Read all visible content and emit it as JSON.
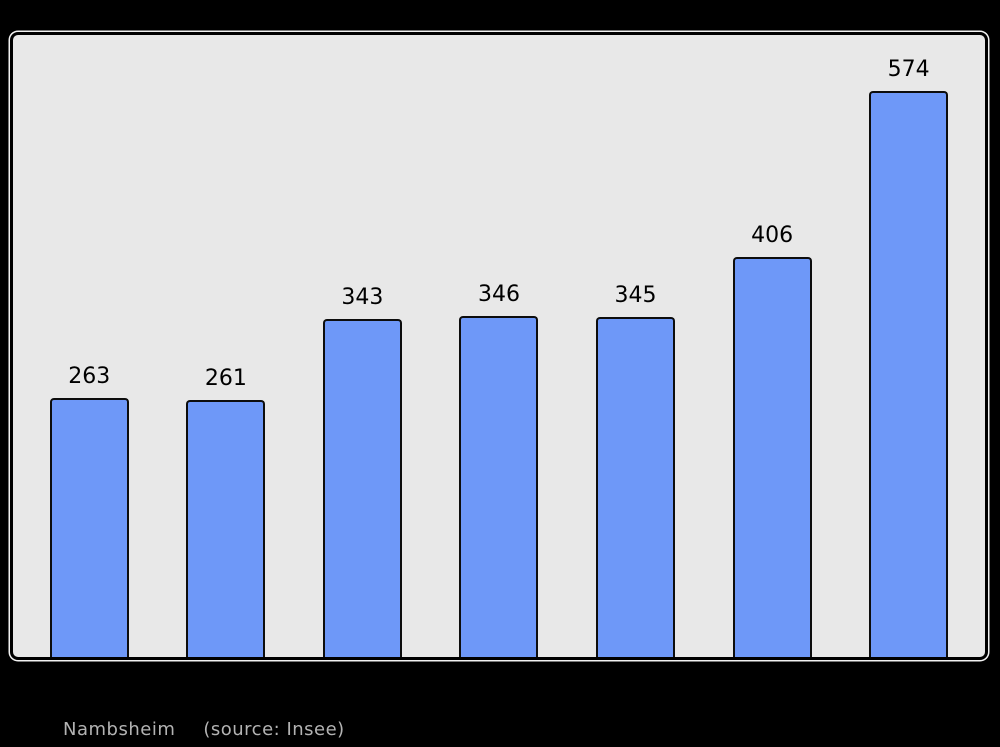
{
  "caption": {
    "name": "Nambsheim",
    "source": "(source: Insee)"
  },
  "chart_data": {
    "type": "bar",
    "values": [
      263,
      261,
      343,
      346,
      345,
      406,
      574
    ],
    "bar_labels": [
      "263",
      "261",
      "343",
      "346",
      "345",
      "406",
      "574"
    ],
    "title": "",
    "xlabel": "",
    "ylabel": "",
    "ylim": [
      0,
      580
    ],
    "axes_visible": false,
    "grid": false,
    "legend": false,
    "data_labels_position": "above-bar",
    "colors": {
      "bar_fill": "#6e98f8",
      "bar_border": "#0d0d0d",
      "plot_background": "#e8e8e8",
      "frame_border": "#000000",
      "frame_outline": "#ffffff",
      "page_background": "#000000",
      "value_label_text": "#000000",
      "caption_text": "#b3b3b3"
    }
  }
}
